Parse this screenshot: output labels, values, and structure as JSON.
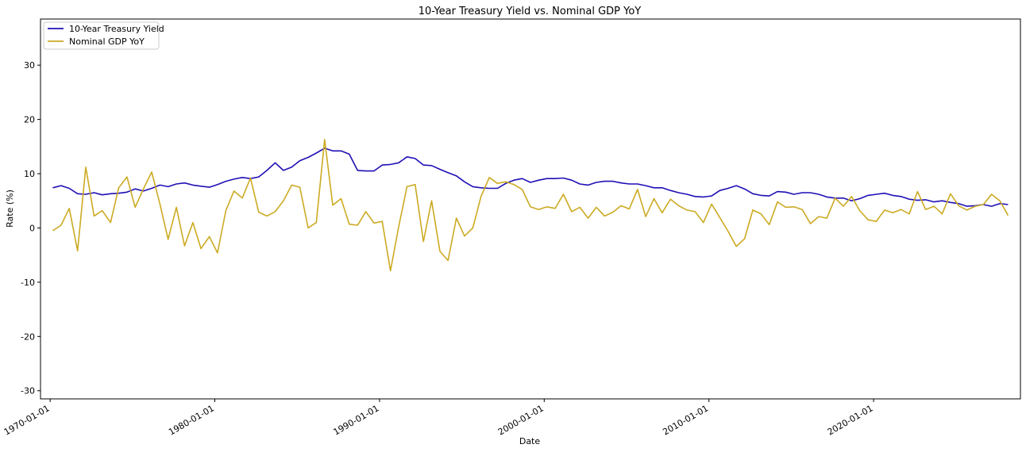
{
  "chart_data": {
    "type": "line",
    "title": "10-Year Treasury Yield vs. Nominal GDP YoY",
    "xlabel": "Date",
    "ylabel": "Rate (%)",
    "x_axis_type": "date",
    "xlim": [
      "1969-06-01",
      "2028-12-01"
    ],
    "ylim": [
      -31.5,
      38.5
    ],
    "x_ticks": [
      "1970-01-01",
      "1980-01-01",
      "1990-01-01",
      "2000-01-01",
      "2010-01-01",
      "2020-01-01"
    ],
    "y_ticks": [
      -30,
      -20,
      -10,
      0,
      10,
      20,
      30
    ],
    "legend_position": "top-left",
    "grid": false,
    "series": [
      {
        "name": "10-Year Treasury Yield",
        "color": "#1f0fb5",
        "points": [
          [
            "1970-03-01",
            7.4
          ],
          [
            "1970-09-01",
            7.8
          ],
          [
            "1971-03-01",
            7.3
          ],
          [
            "1971-09-01",
            6.3
          ],
          [
            "1972-03-01",
            6.2
          ],
          [
            "1972-09-01",
            6.5
          ],
          [
            "1973-03-01",
            6.1
          ],
          [
            "1973-09-01",
            6.3
          ],
          [
            "1974-03-01",
            6.4
          ],
          [
            "1974-09-01",
            6.6
          ],
          [
            "1975-03-01",
            7.2
          ],
          [
            "1975-09-01",
            6.8
          ],
          [
            "1976-03-01",
            7.3
          ],
          [
            "1976-09-01",
            7.9
          ],
          [
            "1977-03-01",
            7.6
          ],
          [
            "1977-09-01",
            8.1
          ],
          [
            "1978-03-01",
            8.3
          ],
          [
            "1978-09-01",
            7.9
          ],
          [
            "1979-03-01",
            7.7
          ],
          [
            "1979-09-01",
            7.5
          ],
          [
            "1980-03-01",
            8.0
          ],
          [
            "1980-09-01",
            8.6
          ],
          [
            "1981-03-01",
            9.0
          ],
          [
            "1981-09-01",
            9.3
          ],
          [
            "1982-03-01",
            9.1
          ],
          [
            "1982-09-01",
            9.4
          ],
          [
            "1983-03-01",
            10.6
          ],
          [
            "1983-09-01",
            12.0
          ],
          [
            "1984-03-01",
            10.6
          ],
          [
            "1984-09-01",
            11.2
          ],
          [
            "1985-03-01",
            12.4
          ],
          [
            "1985-09-01",
            13.0
          ],
          [
            "1986-03-01",
            13.8
          ],
          [
            "1986-09-01",
            14.7
          ],
          [
            "1987-03-01",
            14.2
          ],
          [
            "1987-09-01",
            14.2
          ],
          [
            "1988-03-01",
            13.6
          ],
          [
            "1988-09-01",
            10.6
          ],
          [
            "1989-03-01",
            10.5
          ],
          [
            "1989-09-01",
            10.5
          ],
          [
            "1990-03-01",
            11.6
          ],
          [
            "1990-09-01",
            11.7
          ],
          [
            "1991-03-01",
            12.0
          ],
          [
            "1991-09-01",
            13.1
          ],
          [
            "1992-03-01",
            12.8
          ],
          [
            "1992-09-01",
            11.6
          ],
          [
            "1993-03-01",
            11.5
          ],
          [
            "1993-09-01",
            10.8
          ],
          [
            "1994-03-01",
            10.2
          ],
          [
            "1994-09-01",
            9.6
          ],
          [
            "1995-03-01",
            8.5
          ],
          [
            "1995-09-01",
            7.6
          ],
          [
            "1996-03-01",
            7.4
          ],
          [
            "1996-09-01",
            7.3
          ],
          [
            "1997-03-01",
            7.3
          ],
          [
            "1997-09-01",
            8.2
          ],
          [
            "1998-03-01",
            8.8
          ],
          [
            "1998-09-01",
            9.1
          ],
          [
            "1999-03-01",
            8.4
          ],
          [
            "1999-09-01",
            8.8
          ],
          [
            "2000-03-01",
            9.1
          ],
          [
            "2000-09-01",
            9.1
          ],
          [
            "2001-03-01",
            9.2
          ],
          [
            "2001-09-01",
            8.8
          ],
          [
            "2002-03-01",
            8.1
          ],
          [
            "2002-09-01",
            7.9
          ],
          [
            "2003-03-01",
            8.4
          ],
          [
            "2003-09-01",
            8.6
          ],
          [
            "2004-03-01",
            8.6
          ],
          [
            "2004-09-01",
            8.3
          ],
          [
            "2005-03-01",
            8.1
          ],
          [
            "2005-09-01",
            8.1
          ],
          [
            "2006-03-01",
            7.8
          ],
          [
            "2006-09-01",
            7.4
          ],
          [
            "2007-03-01",
            7.4
          ],
          [
            "2007-09-01",
            6.9
          ],
          [
            "2008-03-01",
            6.5
          ],
          [
            "2008-09-01",
            6.2
          ],
          [
            "2009-03-01",
            5.8
          ],
          [
            "2009-09-01",
            5.7
          ],
          [
            "2010-03-01",
            5.9
          ],
          [
            "2010-09-01",
            6.9
          ],
          [
            "2011-03-01",
            7.3
          ],
          [
            "2011-09-01",
            7.8
          ],
          [
            "2012-03-01",
            7.2
          ],
          [
            "2012-09-01",
            6.3
          ],
          [
            "2013-03-01",
            6.0
          ],
          [
            "2013-09-01",
            5.9
          ],
          [
            "2014-03-01",
            6.7
          ],
          [
            "2014-09-01",
            6.6
          ],
          [
            "2015-03-01",
            6.2
          ],
          [
            "2015-09-01",
            6.5
          ],
          [
            "2016-03-01",
            6.5
          ],
          [
            "2016-09-01",
            6.2
          ],
          [
            "2017-03-01",
            5.7
          ],
          [
            "2017-09-01",
            5.5
          ],
          [
            "2018-03-01",
            5.5
          ],
          [
            "2018-09-01",
            5.0
          ],
          [
            "2019-03-01",
            5.4
          ],
          [
            "2019-09-01",
            6.0
          ],
          [
            "2020-03-01",
            6.2
          ],
          [
            "2020-09-01",
            6.4
          ],
          [
            "2021-03-01",
            6.0
          ],
          [
            "2021-09-01",
            5.8
          ],
          [
            "2022-03-01",
            5.3
          ],
          [
            "2022-09-01",
            5.1
          ],
          [
            "2023-03-01",
            5.2
          ],
          [
            "2023-09-01",
            4.8
          ],
          [
            "2024-03-01",
            5.0
          ],
          [
            "2024-09-01",
            4.7
          ],
          [
            "2025-03-01",
            4.5
          ],
          [
            "2025-09-01",
            4.0
          ],
          [
            "2026-03-01",
            4.1
          ],
          [
            "2026-09-01",
            4.3
          ],
          [
            "2027-03-01",
            4.0
          ],
          [
            "2027-09-01",
            4.5
          ],
          [
            "2028-03-01",
            4.3
          ]
        ]
      },
      {
        "name": "Nominal GDP YoY",
        "color": "#ccaa22",
        "points": [
          [
            "1970-03-01",
            -0.5
          ],
          [
            "1970-09-01",
            0.5
          ],
          [
            "1971-03-01",
            3.6
          ],
          [
            "1971-09-01",
            -4.2
          ],
          [
            "1972-03-01",
            11.2
          ],
          [
            "1972-09-01",
            2.2
          ],
          [
            "1973-03-01",
            3.2
          ],
          [
            "1973-09-01",
            1.0
          ],
          [
            "1974-03-01",
            7.4
          ],
          [
            "1974-09-01",
            9.4
          ],
          [
            "1975-03-01",
            3.8
          ],
          [
            "1975-09-01",
            7.2
          ],
          [
            "1976-03-01",
            10.3
          ],
          [
            "1976-09-01",
            4.4
          ],
          [
            "1977-03-01",
            -2.1
          ],
          [
            "1977-09-01",
            3.8
          ],
          [
            "1978-03-01",
            -3.3
          ],
          [
            "1978-09-01",
            1.0
          ],
          [
            "1979-03-01",
            -3.8
          ],
          [
            "1979-09-01",
            -1.6
          ],
          [
            "1980-03-01",
            -4.6
          ],
          [
            "1980-09-01",
            3.2
          ],
          [
            "1981-03-01",
            6.8
          ],
          [
            "1981-09-01",
            5.5
          ],
          [
            "1982-03-01",
            9.2
          ],
          [
            "1982-09-01",
            2.9
          ],
          [
            "1983-03-01",
            2.2
          ],
          [
            "1983-09-01",
            3.0
          ],
          [
            "1984-03-01",
            5.0
          ],
          [
            "1984-09-01",
            7.9
          ],
          [
            "1985-03-01",
            7.5
          ],
          [
            "1985-09-01",
            0.0
          ],
          [
            "1986-03-01",
            1.0
          ],
          [
            "1986-09-01",
            16.3
          ],
          [
            "1987-03-01",
            4.2
          ],
          [
            "1987-09-01",
            5.4
          ],
          [
            "1988-03-01",
            0.7
          ],
          [
            "1988-09-01",
            0.5
          ],
          [
            "1989-03-01",
            3.0
          ],
          [
            "1989-09-01",
            0.9
          ],
          [
            "1990-03-01",
            1.2
          ],
          [
            "1990-09-01",
            -7.9
          ],
          [
            "1991-03-01",
            0.2
          ],
          [
            "1991-09-01",
            7.6
          ],
          [
            "1992-03-01",
            8.0
          ],
          [
            "1992-09-01",
            -2.5
          ],
          [
            "1993-03-01",
            5.0
          ],
          [
            "1993-09-01",
            -4.3
          ],
          [
            "1994-03-01",
            -6.0
          ],
          [
            "1994-09-01",
            1.8
          ],
          [
            "1995-03-01",
            -1.5
          ],
          [
            "1995-09-01",
            0.0
          ],
          [
            "1996-03-01",
            5.8
          ],
          [
            "1996-09-01",
            9.3
          ],
          [
            "1997-03-01",
            8.2
          ],
          [
            "1997-09-01",
            8.5
          ],
          [
            "1998-03-01",
            8.0
          ],
          [
            "1998-09-01",
            7.1
          ],
          [
            "1999-03-01",
            3.9
          ],
          [
            "1999-09-01",
            3.4
          ],
          [
            "2000-03-01",
            3.9
          ],
          [
            "2000-09-01",
            3.6
          ],
          [
            "2001-03-01",
            6.2
          ],
          [
            "2001-09-01",
            3.0
          ],
          [
            "2002-03-01",
            3.8
          ],
          [
            "2002-09-01",
            1.8
          ],
          [
            "2003-03-01",
            3.8
          ],
          [
            "2003-09-01",
            2.2
          ],
          [
            "2004-03-01",
            2.9
          ],
          [
            "2004-09-01",
            4.1
          ],
          [
            "2005-03-01",
            3.5
          ],
          [
            "2005-09-01",
            7.1
          ],
          [
            "2006-03-01",
            2.1
          ],
          [
            "2006-09-01",
            5.4
          ],
          [
            "2007-03-01",
            2.8
          ],
          [
            "2007-09-01",
            5.3
          ],
          [
            "2008-03-01",
            4.1
          ],
          [
            "2008-09-01",
            3.3
          ],
          [
            "2009-03-01",
            3.0
          ],
          [
            "2009-09-01",
            1.0
          ],
          [
            "2010-03-01",
            4.4
          ],
          [
            "2010-09-01",
            1.9
          ],
          [
            "2011-03-01",
            -0.6
          ],
          [
            "2011-09-01",
            -3.4
          ],
          [
            "2012-03-01",
            -2.0
          ],
          [
            "2012-09-01",
            3.3
          ],
          [
            "2013-03-01",
            2.6
          ],
          [
            "2013-09-01",
            0.6
          ],
          [
            "2014-03-01",
            4.8
          ],
          [
            "2014-09-01",
            3.8
          ],
          [
            "2015-03-01",
            3.9
          ],
          [
            "2015-09-01",
            3.4
          ],
          [
            "2016-03-01",
            0.8
          ],
          [
            "2016-09-01",
            2.1
          ],
          [
            "2017-03-01",
            1.8
          ],
          [
            "2017-09-01",
            5.5
          ],
          [
            "2018-03-01",
            4.0
          ],
          [
            "2018-09-01",
            5.8
          ],
          [
            "2019-03-01",
            3.2
          ],
          [
            "2019-09-01",
            1.5
          ],
          [
            "2020-03-01",
            1.2
          ],
          [
            "2020-09-01",
            3.3
          ],
          [
            "2021-03-01",
            2.8
          ],
          [
            "2021-09-01",
            3.4
          ],
          [
            "2022-03-01",
            2.6
          ],
          [
            "2022-09-01",
            6.7
          ],
          [
            "2023-03-01",
            3.4
          ],
          [
            "2023-09-01",
            4.0
          ],
          [
            "2024-03-01",
            2.6
          ],
          [
            "2024-09-01",
            6.3
          ],
          [
            "2025-03-01",
            4.1
          ],
          [
            "2025-09-01",
            3.3
          ],
          [
            "2026-03-01",
            4.0
          ],
          [
            "2026-09-01",
            4.3
          ],
          [
            "2027-03-01",
            6.2
          ],
          [
            "2027-09-01",
            5.0
          ],
          [
            "2028-03-01",
            2.3
          ]
        ]
      }
    ]
  }
}
